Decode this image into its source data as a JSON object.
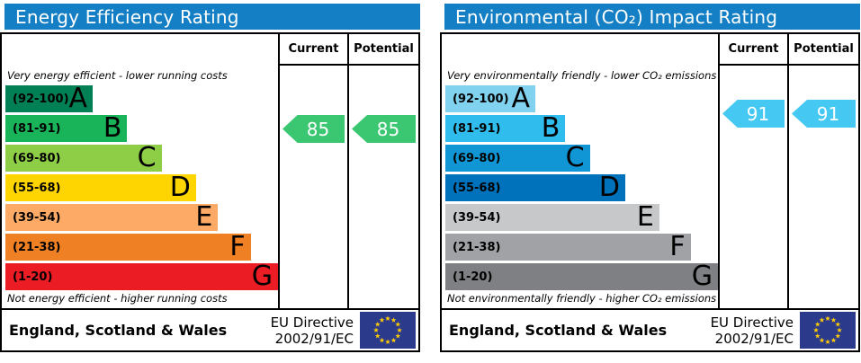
{
  "colors": {
    "title_bar": "#147fc4",
    "eu_flag_background": "#2c3a8c",
    "eu_flag_star": "#ffcc00"
  },
  "chart_data": [
    {
      "type": "bar",
      "title": "Energy Efficiency Rating",
      "caption_top": "Very energy efficient - lower running costs",
      "caption_bottom": "Not energy efficient - higher running costs",
      "bands": [
        {
          "range": "(92-100)",
          "letter": "A",
          "color": "#008054",
          "width_pct": "32%"
        },
        {
          "range": "(81-91)",
          "letter": "B",
          "color": "#19b459",
          "width_pct": "44.7%"
        },
        {
          "range": "(69-80)",
          "letter": "C",
          "color": "#8dce46",
          "width_pct": "57.3%"
        },
        {
          "range": "(55-68)",
          "letter": "D",
          "color": "#fed500",
          "width_pct": "69.9%"
        },
        {
          "range": "(39-54)",
          "letter": "E",
          "color": "#fcaa65",
          "width_pct": "78%"
        },
        {
          "range": "(21-38)",
          "letter": "F",
          "color": "#ef8023",
          "width_pct": "90%"
        },
        {
          "range": "(1-20)",
          "letter": "G",
          "color": "#ec1c24",
          "width_pct": "100%"
        }
      ],
      "current": {
        "label": "Current",
        "value": 85,
        "band": "B",
        "color": "#3bc772"
      },
      "potential": {
        "label": "Potential",
        "value": 85,
        "band": "B",
        "color": "#3bc772"
      },
      "footer": {
        "region": "England, Scotland & Wales",
        "directive_line1": "EU Directive",
        "directive_line2": "2002/91/EC"
      }
    },
    {
      "type": "bar",
      "title": "Environmental (CO₂) Impact Rating",
      "caption_top": "Very environmentally friendly - lower CO₂ emissions",
      "caption_bottom": "Not environmentally friendly - higher CO₂ emissions",
      "bands": [
        {
          "range": "(92-100)",
          "letter": "A",
          "color": "#81d2ef",
          "width_pct": "33%"
        },
        {
          "range": "(81-91)",
          "letter": "B",
          "color": "#31bcee",
          "width_pct": "44%"
        },
        {
          "range": "(69-80)",
          "letter": "C",
          "color": "#1095d5",
          "width_pct": "53%"
        },
        {
          "range": "(55-68)",
          "letter": "D",
          "color": "#0072bb",
          "width_pct": "66%"
        },
        {
          "range": "(39-54)",
          "letter": "E",
          "color": "#c7c8ca",
          "width_pct": "78.5%"
        },
        {
          "range": "(21-38)",
          "letter": "F",
          "color": "#a0a2a5",
          "width_pct": "90%"
        },
        {
          "range": "(1-20)",
          "letter": "G",
          "color": "#7e8083",
          "width_pct": "100%"
        }
      ],
      "current": {
        "label": "Current",
        "value": 91,
        "band": "B",
        "color": "#45c9f3"
      },
      "potential": {
        "label": "Potential",
        "value": 91,
        "band": "B",
        "color": "#45c9f3"
      },
      "footer": {
        "region": "England, Scotland & Wales",
        "directive_line1": "EU Directive",
        "directive_line2": "2002/91/EC"
      }
    }
  ]
}
